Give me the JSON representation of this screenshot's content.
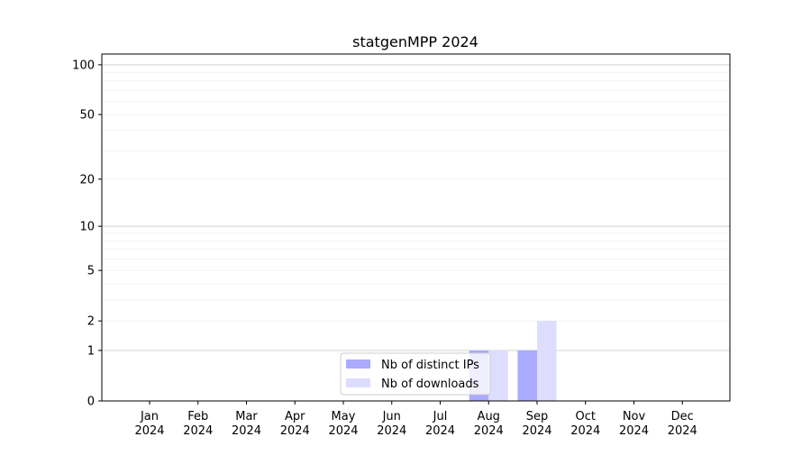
{
  "chart_data": {
    "type": "bar",
    "title": "statgenMPP 2024",
    "xlabel": "",
    "ylabel": "",
    "y_scale": "log(1+y)",
    "ylim": [
      0,
      116
    ],
    "yticks": [
      0,
      1,
      2,
      5,
      10,
      20,
      50,
      100
    ],
    "ytick_labels": [
      "0",
      "1",
      "2",
      "5",
      "10",
      "20",
      "50",
      "100"
    ],
    "grid": true,
    "legend_position": "bottom-center",
    "categories": [
      "Jan\n2024",
      "Feb\n2024",
      "Mar\n2024",
      "Apr\n2024",
      "May\n2024",
      "Jun\n2024",
      "Jul\n2024",
      "Aug\n2024",
      "Sep\n2024",
      "Oct\n2024",
      "Nov\n2024",
      "Dec\n2024"
    ],
    "series": [
      {
        "name": "Nb of distinct IPs",
        "color": "#aaaaff",
        "values": [
          0,
          0,
          0,
          0,
          0,
          0,
          0,
          1,
          1,
          0,
          0,
          0
        ]
      },
      {
        "name": "Nb of downloads",
        "color": "#ddddff",
        "values": [
          0,
          0,
          0,
          0,
          0,
          0,
          0,
          1,
          2,
          0,
          0,
          0
        ]
      }
    ]
  }
}
